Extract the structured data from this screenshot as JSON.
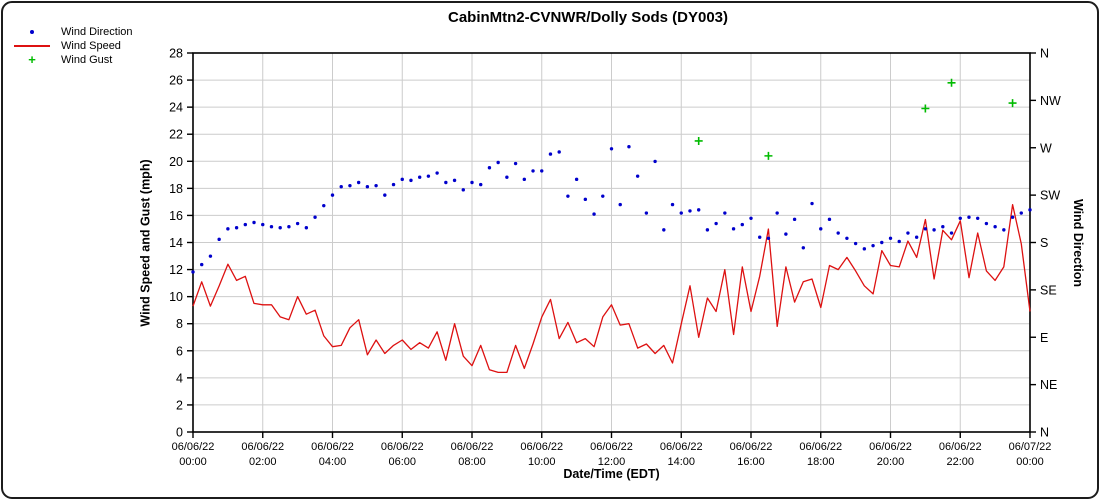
{
  "legend": {
    "items": [
      {
        "label": "Wind Direction",
        "marker": "dot",
        "color": "#0000cc"
      },
      {
        "label": "Wind Speed",
        "marker": "line",
        "color": "#dd1111"
      },
      {
        "label": "Wind Gust",
        "marker": "plus",
        "color": "#00bb00"
      }
    ]
  },
  "chart_data": {
    "type": "line",
    "title": "CabinMtn2-CVNWR/Dolly Sods (DY003)",
    "xlabel": "Date/Time (EDT)",
    "ylabel_left": "Wind Speed and Gust (mph)",
    "ylabel_right": "Wind Direction",
    "x_hours_range": [
      0,
      24
    ],
    "y_left_range": [
      0,
      28
    ],
    "y_left_ticks": [
      0,
      2,
      4,
      6,
      8,
      10,
      12,
      14,
      16,
      18,
      20,
      22,
      24,
      26,
      28
    ],
    "y_right_ticks": [
      "N",
      "NW",
      "W",
      "SW",
      "S",
      "SE",
      "E",
      "NE",
      "N"
    ],
    "y_right_tick_degrees": [
      360,
      315,
      270,
      225,
      180,
      135,
      90,
      45,
      0
    ],
    "grid": true,
    "legend_position": "top-left",
    "x_ticks": [
      {
        "date": "06/06/22",
        "time": "00:00"
      },
      {
        "date": "06/06/22",
        "time": "02:00"
      },
      {
        "date": "06/06/22",
        "time": "04:00"
      },
      {
        "date": "06/06/22",
        "time": "06:00"
      },
      {
        "date": "06/06/22",
        "time": "08:00"
      },
      {
        "date": "06/06/22",
        "time": "10:00"
      },
      {
        "date": "06/06/22",
        "time": "12:00"
      },
      {
        "date": "06/06/22",
        "time": "14:00"
      },
      {
        "date": "06/06/22",
        "time": "16:00"
      },
      {
        "date": "06/06/22",
        "time": "18:00"
      },
      {
        "date": "06/06/22",
        "time": "20:00"
      },
      {
        "date": "06/06/22",
        "time": "22:00"
      },
      {
        "date": "06/07/22",
        "time": "00:00"
      }
    ],
    "colors": {
      "grid": "#cccccc",
      "axis": "#000000",
      "wind_direction": "#0000cc",
      "wind_speed": "#dd1111",
      "wind_gust": "#00bb00"
    },
    "series": [
      {
        "name": "Wind Direction",
        "type": "scatter",
        "marker": "dot",
        "color": "#0000cc",
        "unit": "degrees",
        "x_start_hours": 0,
        "x_step_hours": 0.25,
        "values": [
          152,
          159,
          167,
          183,
          193,
          194,
          197,
          199,
          197,
          195,
          194,
          195,
          198,
          194,
          204,
          215,
          225,
          233,
          234,
          237,
          233,
          234,
          225,
          235,
          240,
          239,
          242,
          243,
          246,
          237,
          239,
          230,
          237,
          235,
          251,
          256,
          242,
          255,
          240,
          248,
          248,
          264,
          266,
          224,
          240,
          221,
          207,
          224,
          269,
          216,
          271,
          243,
          208,
          257,
          192,
          216,
          208,
          210,
          211,
          192,
          198,
          208,
          193,
          197,
          203,
          185,
          184,
          208,
          188,
          202,
          175,
          217,
          193,
          202,
          189,
          184,
          179,
          174,
          177,
          180,
          184,
          181,
          189,
          185,
          193,
          192,
          195,
          189,
          203,
          204,
          203,
          198,
          195,
          192,
          204,
          208,
          211
        ]
      },
      {
        "name": "Wind Speed",
        "type": "line",
        "color": "#dd1111",
        "unit": "mph",
        "x_start_hours": 0,
        "x_step_hours": 0.25,
        "values": [
          9.3,
          11.1,
          9.3,
          10.8,
          12.4,
          11.2,
          11.5,
          9.5,
          9.4,
          9.4,
          8.5,
          8.3,
          10.0,
          8.7,
          9.0,
          7.1,
          6.3,
          6.4,
          7.7,
          8.3,
          5.7,
          6.8,
          5.8,
          6.4,
          6.8,
          6.1,
          6.6,
          6.2,
          7.4,
          5.3,
          8.0,
          5.6,
          4.9,
          6.4,
          4.6,
          4.4,
          4.4,
          6.4,
          4.7,
          6.5,
          8.5,
          9.8,
          6.9,
          8.1,
          6.6,
          6.9,
          6.3,
          8.5,
          9.4,
          7.9,
          8.0,
          6.2,
          6.5,
          5.8,
          6.4,
          5.1,
          8.0,
          10.8,
          7.0,
          9.9,
          8.9,
          12.0,
          7.2,
          12.2,
          8.9,
          11.5,
          15.0,
          7.8,
          12.2,
          9.6,
          11.1,
          11.3,
          9.2,
          12.3,
          12.0,
          12.9,
          11.9,
          10.8,
          10.2,
          13.4,
          12.3,
          12.2,
          14.1,
          12.9,
          15.7,
          11.3,
          14.9,
          14.2,
          15.6,
          11.4,
          14.7,
          11.9,
          11.2,
          12.2,
          16.8,
          13.9,
          8.9
        ]
      },
      {
        "name": "Wind Gust",
        "type": "scatter",
        "marker": "plus",
        "color": "#00bb00",
        "unit": "mph",
        "x_hours": [
          14.5,
          16.5,
          21.0,
          21.75,
          23.5
        ],
        "values": [
          21.5,
          20.4,
          23.9,
          25.8,
          24.3
        ]
      }
    ]
  }
}
